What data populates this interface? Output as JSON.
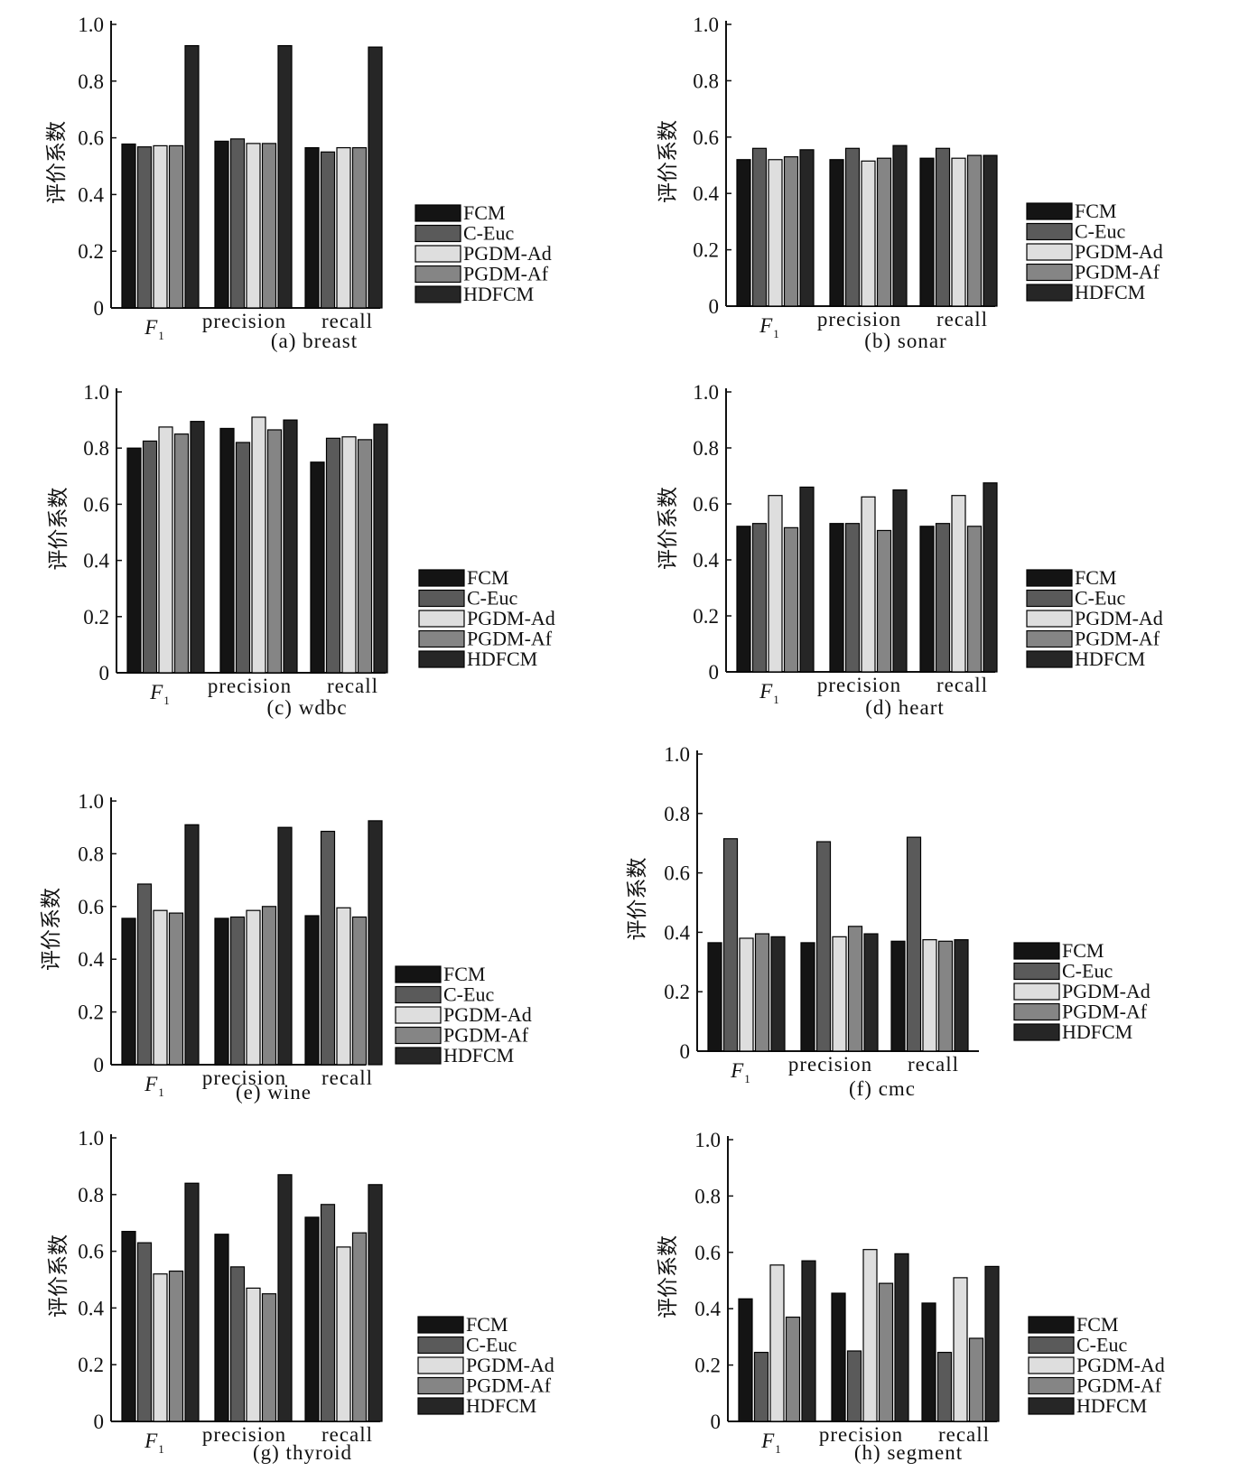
{
  "figure": {
    "y_label": "评价系数",
    "legend": [
      "FCM",
      "C-Euc",
      "PGDM-Ad",
      "PGDM-Af",
      "HDFCM"
    ],
    "series_colors": [
      "#141414",
      "#5a5a5a",
      "#dedede",
      "#858585",
      "#262626"
    ]
  },
  "chart_data": [
    {
      "type": "bar",
      "caption": "(a)  breast",
      "categories": [
        "F1",
        "precision",
        "recall"
      ],
      "ylabel": "评价系数",
      "ylim": [
        0,
        1.0
      ],
      "yticks": [
        "0",
        "0.2",
        "0.4",
        "0.6",
        "0.8",
        "1.0"
      ],
      "series": [
        {
          "name": "FCM",
          "values": [
            0.578,
            0.588,
            0.565
          ]
        },
        {
          "name": "C-Euc",
          "values": [
            0.568,
            0.596,
            0.55
          ]
        },
        {
          "name": "PGDM-Ad",
          "values": [
            0.572,
            0.58,
            0.565
          ]
        },
        {
          "name": "PGDM-Af",
          "values": [
            0.572,
            0.58,
            0.565
          ]
        },
        {
          "name": "HDFCM",
          "values": [
            0.925,
            0.925,
            0.92
          ]
        }
      ]
    },
    {
      "type": "bar",
      "caption": "(b)  sonar",
      "categories": [
        "F1",
        "precision",
        "recall"
      ],
      "ylabel": "评价系数",
      "ylim": [
        0,
        1.0
      ],
      "yticks": [
        "0",
        "0.2",
        "0.4",
        "0.6",
        "0.8",
        "1.0"
      ],
      "series": [
        {
          "name": "FCM",
          "values": [
            0.52,
            0.52,
            0.525
          ]
        },
        {
          "name": "C-Euc",
          "values": [
            0.56,
            0.56,
            0.56
          ]
        },
        {
          "name": "PGDM-Ad",
          "values": [
            0.52,
            0.515,
            0.525
          ]
        },
        {
          "name": "PGDM-Af",
          "values": [
            0.53,
            0.525,
            0.535
          ]
        },
        {
          "name": "HDFCM",
          "values": [
            0.555,
            0.57,
            0.535
          ]
        }
      ]
    },
    {
      "type": "bar",
      "caption": "(c)  wdbc",
      "categories": [
        "F1",
        "precision",
        "recall"
      ],
      "ylabel": "评价系数",
      "ylim": [
        0,
        1.0
      ],
      "yticks": [
        "0",
        "0.2",
        "0.4",
        "0.6",
        "0.8",
        "1.0"
      ],
      "series": [
        {
          "name": "FCM",
          "values": [
            0.8,
            0.87,
            0.75
          ]
        },
        {
          "name": "C-Euc",
          "values": [
            0.825,
            0.82,
            0.835
          ]
        },
        {
          "name": "PGDM-Ad",
          "values": [
            0.875,
            0.91,
            0.84
          ]
        },
        {
          "name": "PGDM-Af",
          "values": [
            0.85,
            0.865,
            0.83
          ]
        },
        {
          "name": "HDFCM",
          "values": [
            0.895,
            0.9,
            0.885
          ]
        }
      ]
    },
    {
      "type": "bar",
      "caption": "(d)  heart",
      "categories": [
        "F1",
        "precision",
        "recall"
      ],
      "ylabel": "评价系数",
      "ylim": [
        0,
        1.0
      ],
      "yticks": [
        "0",
        "0.2",
        "0.4",
        "0.6",
        "0.8",
        "1.0"
      ],
      "series": [
        {
          "name": "FCM",
          "values": [
            0.52,
            0.53,
            0.52
          ]
        },
        {
          "name": "C-Euc",
          "values": [
            0.53,
            0.53,
            0.53
          ]
        },
        {
          "name": "PGDM-Ad",
          "values": [
            0.63,
            0.625,
            0.63
          ]
        },
        {
          "name": "PGDM-Af",
          "values": [
            0.515,
            0.505,
            0.52
          ]
        },
        {
          "name": "HDFCM",
          "values": [
            0.66,
            0.65,
            0.675
          ]
        }
      ]
    },
    {
      "type": "bar",
      "caption": "(e)  wine",
      "categories": [
        "F1",
        "precision",
        "recall"
      ],
      "ylabel": "评价系数",
      "ylim": [
        0,
        1.0
      ],
      "yticks": [
        "0",
        "0.2",
        "0.4",
        "0.6",
        "0.8",
        "1.0"
      ],
      "series": [
        {
          "name": "FCM",
          "values": [
            0.555,
            0.555,
            0.565
          ]
        },
        {
          "name": "C-Euc",
          "values": [
            0.685,
            0.56,
            0.885
          ]
        },
        {
          "name": "PGDM-Ad",
          "values": [
            0.585,
            0.585,
            0.595
          ]
        },
        {
          "name": "PGDM-Af",
          "values": [
            0.575,
            0.6,
            0.56
          ]
        },
        {
          "name": "HDFCM",
          "values": [
            0.91,
            0.9,
            0.925
          ]
        }
      ]
    },
    {
      "type": "bar",
      "caption": "(f)  cmc",
      "categories": [
        "F1",
        "precision",
        "recall"
      ],
      "ylabel": "评价系数",
      "ylim": [
        0,
        1.0
      ],
      "yticks": [
        "0",
        "0.2",
        "0.4",
        "0.6",
        "0.8",
        "1.0"
      ],
      "series": [
        {
          "name": "FCM",
          "values": [
            0.365,
            0.365,
            0.37
          ]
        },
        {
          "name": "C-Euc",
          "values": [
            0.715,
            0.705,
            0.72
          ]
        },
        {
          "name": "PGDM-Ad",
          "values": [
            0.38,
            0.385,
            0.375
          ]
        },
        {
          "name": "PGDM-Af",
          "values": [
            0.395,
            0.42,
            0.37
          ]
        },
        {
          "name": "HDFCM",
          "values": [
            0.385,
            0.395,
            0.375
          ]
        }
      ]
    },
    {
      "type": "bar",
      "caption": "(g)  thyroid",
      "categories": [
        "F1",
        "precision",
        "recall"
      ],
      "ylabel": "评价系数",
      "ylim": [
        0,
        1.0
      ],
      "yticks": [
        "0",
        "0.2",
        "0.4",
        "0.6",
        "0.8",
        "1.0"
      ],
      "series": [
        {
          "name": "FCM",
          "values": [
            0.67,
            0.66,
            0.72
          ]
        },
        {
          "name": "C-Euc",
          "values": [
            0.63,
            0.545,
            0.765
          ]
        },
        {
          "name": "PGDM-Ad",
          "values": [
            0.52,
            0.47,
            0.615
          ]
        },
        {
          "name": "PGDM-Af",
          "values": [
            0.53,
            0.45,
            0.665
          ]
        },
        {
          "name": "HDFCM",
          "values": [
            0.84,
            0.87,
            0.835
          ]
        }
      ]
    },
    {
      "type": "bar",
      "caption": "(h)  segment",
      "categories": [
        "F1",
        "precision",
        "recall"
      ],
      "ylabel": "评价系数",
      "ylim": [
        0,
        1.0
      ],
      "yticks": [
        "0",
        "0.2",
        "0.4",
        "0.6",
        "0.8",
        "1.0"
      ],
      "series": [
        {
          "name": "FCM",
          "values": [
            0.435,
            0.455,
            0.42
          ]
        },
        {
          "name": "C-Euc",
          "values": [
            0.245,
            0.25,
            0.245
          ]
        },
        {
          "name": "PGDM-Ad",
          "values": [
            0.555,
            0.61,
            0.51
          ]
        },
        {
          "name": "PGDM-Af",
          "values": [
            0.37,
            0.49,
            0.295
          ]
        },
        {
          "name": "HDFCM",
          "values": [
            0.57,
            0.595,
            0.55
          ]
        }
      ]
    }
  ]
}
